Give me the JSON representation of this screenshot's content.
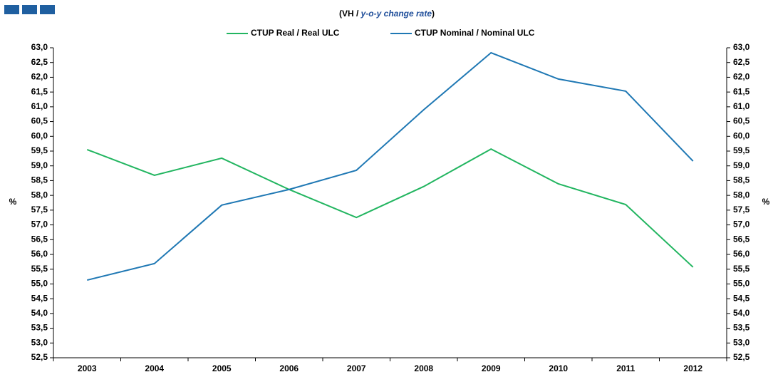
{
  "chart_data": {
    "type": "line",
    "subtitle_prefix": "(VH / ",
    "subtitle_emphasis": "y-o-y change rate",
    "subtitle_suffix": ")",
    "ylabel": "%",
    "y2label": "%",
    "categories": [
      "2003",
      "2004",
      "2005",
      "2006",
      "2007",
      "2008",
      "2009",
      "2010",
      "2011",
      "2012"
    ],
    "series": [
      {
        "name": "CTUP Real / Real ULC",
        "color": "#22b560",
        "values": [
          59.55,
          58.68,
          59.26,
          58.2,
          57.25,
          58.3,
          59.57,
          58.39,
          57.69,
          55.57
        ]
      },
      {
        "name": "CTUP Nominal / Nominal ULC",
        "color": "#1f78b4",
        "values": [
          55.13,
          55.69,
          57.67,
          58.2,
          58.85,
          60.9,
          62.83,
          61.94,
          61.53,
          59.16
        ]
      }
    ],
    "ylim": [
      52.5,
      63.0
    ],
    "yticks": [
      {
        "value": 52.5,
        "label": "52,5"
      },
      {
        "value": 53.0,
        "label": "53,0"
      },
      {
        "value": 53.5,
        "label": "53,5"
      },
      {
        "value": 54.0,
        "label": "54,0"
      },
      {
        "value": 54.5,
        "label": "54,5"
      },
      {
        "value": 55.0,
        "label": "55,0"
      },
      {
        "value": 55.5,
        "label": "55,5"
      },
      {
        "value": 56.0,
        "label": "56,0"
      },
      {
        "value": 56.5,
        "label": "56,5"
      },
      {
        "value": 57.0,
        "label": "57,0"
      },
      {
        "value": 57.5,
        "label": "57,5"
      },
      {
        "value": 58.0,
        "label": "58,0"
      },
      {
        "value": 58.5,
        "label": "58,5"
      },
      {
        "value": 59.0,
        "label": "59,0"
      },
      {
        "value": 59.5,
        "label": "59,5"
      },
      {
        "value": 60.0,
        "label": "60,0"
      },
      {
        "value": 60.5,
        "label": "60,5"
      },
      {
        "value": 61.0,
        "label": "61,0"
      },
      {
        "value": 61.5,
        "label": "61,5"
      },
      {
        "value": 62.0,
        "label": "62,0"
      },
      {
        "value": 62.5,
        "label": "62,5"
      },
      {
        "value": 63.0,
        "label": "63,0"
      }
    ],
    "y2lim": [
      52.5,
      63.0
    ],
    "y2ticks": [
      {
        "value": 52.5,
        "label": "52,5"
      },
      {
        "value": 53.0,
        "label": "53,0"
      },
      {
        "value": 53.5,
        "label": "53,5"
      },
      {
        "value": 54.0,
        "label": "54,0"
      },
      {
        "value": 54.5,
        "label": "54,5"
      },
      {
        "value": 55.0,
        "label": "55,0"
      },
      {
        "value": 55.5,
        "label": "55,5"
      },
      {
        "value": 56.0,
        "label": "56,0"
      },
      {
        "value": 56.5,
        "label": "56,5"
      },
      {
        "value": 57.0,
        "label": "57,0"
      },
      {
        "value": 57.5,
        "label": "57,5"
      },
      {
        "value": 58.0,
        "label": "58,0"
      },
      {
        "value": 58.5,
        "label": "58,5"
      },
      {
        "value": 59.0,
        "label": "59,0"
      },
      {
        "value": 59.5,
        "label": "59,5"
      },
      {
        "value": 60.0,
        "label": "60,0"
      },
      {
        "value": 60.5,
        "label": "60,5"
      },
      {
        "value": 61.0,
        "label": "61,0"
      },
      {
        "value": 61.5,
        "label": "61,5"
      },
      {
        "value": 62.0,
        "label": "62,0"
      },
      {
        "value": 62.5,
        "label": "62,5"
      },
      {
        "value": 63.0,
        "label": "63,0"
      }
    ],
    "grid": false,
    "legend": "top"
  }
}
